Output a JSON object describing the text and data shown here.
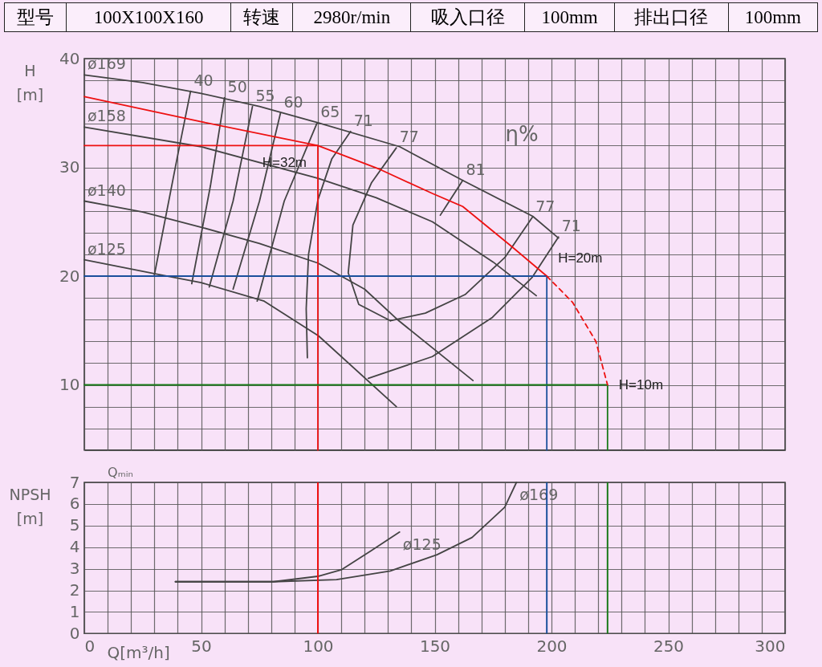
{
  "chart_data": [
    {
      "type": "other",
      "annotations": [
        "型号",
        "100X100X160",
        "转速",
        "2980r/min",
        "吸入口径",
        "100mm",
        "排出口径",
        "100mm"
      ]
    },
    {
      "type": "line",
      "ylabel": "H [m]",
      "xlim": [
        0,
        300
      ],
      "ylim": [
        4,
        40
      ],
      "grid": true,
      "tick_labels": "y",
      "xticks": [
        0,
        {
          "value": 10,
          "label": null
        },
        {
          "value": 20,
          "label": null
        },
        {
          "value": 30,
          "label": null
        },
        {
          "value": 40,
          "label": null
        },
        50,
        {
          "value": 60,
          "label": null
        },
        {
          "value": 70,
          "label": null
        },
        {
          "value": 80,
          "label": null
        },
        {
          "value": 90,
          "label": null
        },
        100,
        {
          "value": 110,
          "label": null
        },
        {
          "value": 120,
          "label": null
        },
        {
          "value": 130,
          "label": null
        },
        {
          "value": 140,
          "label": null
        },
        150,
        {
          "value": 160,
          "label": null
        },
        {
          "value": 170,
          "label": null
        },
        {
          "value": 180,
          "label": null
        },
        {
          "value": 190,
          "label": null
        },
        200,
        {
          "value": 210,
          "label": null
        },
        {
          "value": 220,
          "label": null
        },
        {
          "value": 230,
          "label": null
        },
        {
          "value": 240,
          "label": null
        },
        250,
        {
          "value": 260,
          "label": null
        },
        {
          "value": 270,
          "label": null
        },
        {
          "value": 280,
          "label": null
        },
        {
          "value": 290,
          "label": null
        },
        300
      ],
      "yticks": [
        {
          "value": 4,
          "label": null
        },
        {
          "value": 6,
          "label": null
        },
        {
          "value": 8,
          "label": null
        },
        10,
        {
          "value": 12,
          "label": null
        },
        {
          "value": 14,
          "label": null
        },
        {
          "value": 16,
          "label": null
        },
        {
          "value": 18,
          "label": null
        },
        20,
        {
          "value": 22,
          "label": null
        },
        {
          "value": 24,
          "label": null
        },
        {
          "value": 26,
          "label": null
        },
        {
          "value": 28,
          "label": null
        },
        30,
        {
          "value": 32,
          "label": null
        },
        {
          "value": 34,
          "label": null
        },
        {
          "value": 36,
          "label": null
        },
        {
          "value": 38,
          "label": null
        },
        40
      ],
      "series": [
        {
          "name": "ø169",
          "color": "#444444",
          "x": [
            0,
            25,
            50,
            75,
            100,
            135,
            162,
            192,
            203
          ],
          "values": [
            38.5,
            37.8,
            36.8,
            35.6,
            34.1,
            31.9,
            28.8,
            25.5,
            23.5
          ]
        },
        {
          "name": "ø158",
          "color": "#444444",
          "x": [
            0,
            50,
            100,
            125,
            149,
            175,
            193.5
          ],
          "values": [
            33.7,
            31.9,
            29,
            27.2,
            25,
            21.3,
            18.2
          ]
        },
        {
          "name": "ø140",
          "color": "#444444",
          "x": [
            0,
            25,
            50,
            75,
            100,
            120,
            134.6,
            166.4
          ],
          "values": [
            26.9,
            25.9,
            24.5,
            23,
            21.2,
            18.8,
            15.9,
            10.4
          ]
        },
        {
          "name": "ø125",
          "color": "#444444",
          "x": [
            0,
            30.8,
            50,
            77,
            100.3,
            133.6
          ],
          "values": [
            21.5,
            20.2,
            19.4,
            17.7,
            14.5,
            8
          ]
        },
        {
          "name": "40",
          "color": "#444444",
          "x": [
            45.5,
            39.7,
            30
          ],
          "values": [
            37,
            30.8,
            20.1
          ]
        },
        {
          "name": "50",
          "color": "#444444",
          "x": [
            60,
            54,
            46
          ],
          "values": [
            36.4,
            28.3,
            19.3
          ]
        },
        {
          "name": "55",
          "color": "#444444",
          "x": [
            72,
            63.7,
            53.5
          ],
          "values": [
            35.6,
            26.9,
            19
          ]
        },
        {
          "name": "60",
          "color": "#444444",
          "x": [
            84,
            75,
            63.7
          ],
          "values": [
            35,
            26.9,
            18.8
          ]
        },
        {
          "name": "65",
          "color": "#444444",
          "x": [
            99.7,
            85.6,
            74
          ],
          "values": [
            34.1,
            26.9,
            17.7
          ]
        },
        {
          "name": "71",
          "color": "#444444",
          "x": [
            114,
            106,
            100,
            96,
            95,
            95.5
          ],
          "values": [
            33.3,
            30.8,
            27,
            22,
            17,
            12.5
          ]
        },
        {
          "name": "77",
          "color": "#444444",
          "x": [
            133.6,
            123,
            115,
            113,
            117.5,
            131
          ],
          "values": [
            31.8,
            28.6,
            24.7,
            20.3,
            17.4,
            15.9
          ]
        },
        {
          "name": "77",
          "color": "#444444",
          "x": [
            191.8,
            180,
            163,
            146,
            131
          ],
          "values": [
            25.4,
            21.7,
            18.3,
            16.6,
            15.9
          ]
        },
        {
          "name": "81",
          "color": "#444444",
          "x": [
            162,
            152.4
          ],
          "values": [
            28.8,
            25.6
          ]
        },
        {
          "name": "71",
          "color": "#444444",
          "x": [
            203,
            191.8,
            174.7,
            149,
            121.6
          ],
          "values": [
            23.6,
            19.9,
            16.2,
            12.6,
            10.6
          ]
        },
        {
          "color": "#ee1111",
          "x": [
            0,
            50,
            100,
            126.7,
            149,
            162,
            182.5,
            198
          ],
          "values": [
            36.5,
            34.2,
            32,
            29.8,
            27.6,
            26.4,
            22.8,
            20
          ]
        },
        {
          "color": "#ee1111",
          "line_style": "dashed",
          "x": [
            198,
            209,
            219,
            224
          ],
          "values": [
            20,
            17.6,
            14,
            10
          ]
        },
        {
          "color": "#ee1111",
          "x": [
            0,
            100,
            100
          ],
          "values": [
            32,
            32,
            4
          ]
        },
        {
          "color": "#1a4f9c",
          "x": [
            0,
            198,
            198
          ],
          "values": [
            20,
            20,
            4
          ]
        },
        {
          "color": "#1a7a1a",
          "x": [
            0,
            224,
            224
          ],
          "values": [
            10,
            10,
            4
          ]
        }
      ],
      "annotations": [
        "η%",
        {
          "text": "H=32m",
          "x": 100,
          "y": 32
        },
        {
          "text": "H=20m",
          "x": 198,
          "y": 20
        },
        {
          "text": "H=10m",
          "x": 224,
          "y": 10
        }
      ]
    },
    {
      "type": "line",
      "xlabel": "Q[m³/h]",
      "ylabel": "NPSH [m]",
      "xlim": [
        0,
        300
      ],
      "ylim": [
        0,
        7
      ],
      "grid": true,
      "xticks": [
        0,
        {
          "value": 10,
          "label": null
        },
        {
          "value": 20,
          "label": null
        },
        {
          "value": 30,
          "label": null
        },
        {
          "value": 40,
          "label": null
        },
        50,
        {
          "value": 60,
          "label": null
        },
        {
          "value": 70,
          "label": null
        },
        {
          "value": 80,
          "label": null
        },
        {
          "value": 90,
          "label": null
        },
        100,
        {
          "value": 110,
          "label": null
        },
        {
          "value": 120,
          "label": null
        },
        {
          "value": 130,
          "label": null
        },
        {
          "value": 140,
          "label": null
        },
        150,
        {
          "value": 160,
          "label": null
        },
        {
          "value": 170,
          "label": null
        },
        {
          "value": 180,
          "label": null
        },
        {
          "value": 190,
          "label": null
        },
        200,
        {
          "value": 210,
          "label": null
        },
        {
          "value": 220,
          "label": null
        },
        {
          "value": 230,
          "label": null
        },
        {
          "value": 240,
          "label": null
        },
        250,
        {
          "value": 260,
          "label": null
        },
        {
          "value": 270,
          "label": null
        },
        {
          "value": 280,
          "label": null
        },
        {
          "value": 290,
          "label": null
        },
        300
      ],
      "yticks": [
        0,
        1,
        2,
        3,
        4,
        5,
        6,
        7
      ],
      "series": [
        {
          "name": "ø125",
          "color": "#444444",
          "x": [
            39,
            81,
            100,
            110,
            123,
            135
          ],
          "values": [
            2.4,
            2.4,
            2.65,
            2.95,
            3.85,
            4.7
          ]
        },
        {
          "name": "ø169",
          "color": "#444444",
          "x": [
            39,
            81,
            108,
            131,
            151,
            166,
            180,
            185
          ],
          "values": [
            2.4,
            2.4,
            2.5,
            2.9,
            3.65,
            4.45,
            5.85,
            7
          ]
        }
      ],
      "ref_lines": [
        {
          "axis": "x",
          "value": 100,
          "color": "#ee1111"
        },
        {
          "axis": "x",
          "value": 198,
          "color": "#1a4f9c"
        },
        {
          "axis": "x",
          "value": 224,
          "color": "#1a7a1a"
        }
      ],
      "annotations": [
        "Qₘᵢₙ"
      ]
    }
  ]
}
